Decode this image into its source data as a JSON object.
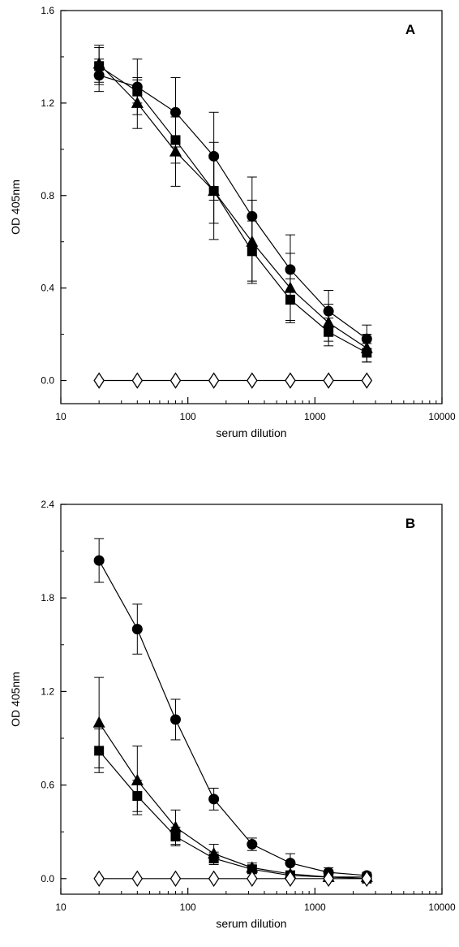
{
  "chart_data": [
    {
      "type": "line",
      "panel_label": "A",
      "xlabel": "serum dilution",
      "ylabel": "OD 405nm",
      "x_scale": "log",
      "xlim": [
        10,
        10000
      ],
      "ylim": [
        -0.1,
        1.6
      ],
      "x_ticks": [
        "10",
        "100",
        "1000",
        "10000"
      ],
      "y_ticks": [
        "0.0",
        "0.4",
        "0.8",
        "1.2",
        "1.6"
      ],
      "x": [
        20,
        40,
        80,
        160,
        320,
        640,
        1280,
        2560
      ],
      "series": [
        {
          "marker": "circle-filled",
          "values": [
            1.32,
            1.27,
            1.16,
            0.97,
            0.71,
            0.48,
            0.3,
            0.18
          ],
          "errors": [
            0.07,
            0.12,
            0.15,
            0.19,
            0.17,
            0.15,
            0.09,
            0.06
          ]
        },
        {
          "marker": "square-filled",
          "values": [
            1.36,
            1.25,
            1.04,
            0.82,
            0.56,
            0.35,
            0.21,
            0.12
          ],
          "errors": [
            0.08,
            0.05,
            0.1,
            0.14,
            0.13,
            0.09,
            0.06,
            0.04
          ]
        },
        {
          "marker": "triangle-filled",
          "values": [
            1.37,
            1.2,
            0.99,
            0.82,
            0.6,
            0.4,
            0.25,
            0.14
          ],
          "errors": [
            0.08,
            0.11,
            0.15,
            0.21,
            0.18,
            0.15,
            0.08,
            0.06
          ]
        },
        {
          "marker": "diamond-open",
          "values": [
            0.0,
            0.0,
            0.0,
            0.0,
            0.0,
            0.0,
            0.0,
            0.0
          ],
          "errors": [
            0,
            0,
            0,
            0,
            0,
            0,
            0,
            0
          ]
        }
      ]
    },
    {
      "type": "line",
      "panel_label": "B",
      "xlabel": "serum dilution",
      "ylabel": "OD 405nm",
      "x_scale": "log",
      "xlim": [
        10,
        10000
      ],
      "ylim": [
        -0.1,
        2.4
      ],
      "x_ticks": [
        "10",
        "100",
        "1000",
        "10000"
      ],
      "y_ticks": [
        "0.0",
        "0.6",
        "1.2",
        "1.8",
        "2.4"
      ],
      "x": [
        20,
        40,
        80,
        160,
        320,
        640,
        1280,
        2560
      ],
      "series": [
        {
          "marker": "circle-filled",
          "values": [
            2.04,
            1.6,
            1.02,
            0.51,
            0.22,
            0.1,
            0.04,
            0.02
          ],
          "errors": [
            0.14,
            0.16,
            0.13,
            0.07,
            0.04,
            0.06,
            0.03,
            0.02
          ]
        },
        {
          "marker": "triangle-filled",
          "values": [
            1.0,
            0.63,
            0.33,
            0.16,
            0.07,
            0.03,
            0.01,
            0.01
          ],
          "errors": [
            0.29,
            0.22,
            0.11,
            0.06,
            0.03,
            0.02,
            0.02,
            0.01
          ]
        },
        {
          "marker": "square-filled",
          "values": [
            0.82,
            0.53,
            0.27,
            0.13,
            0.06,
            0.02,
            0.01,
            0.0
          ],
          "errors": [
            0.14,
            0.1,
            0.06,
            0.04,
            0.02,
            0.02,
            0.01,
            0.01
          ]
        },
        {
          "marker": "diamond-open",
          "values": [
            0.0,
            0.0,
            0.0,
            0.0,
            0.0,
            0.0,
            0.0,
            0.0
          ],
          "errors": [
            0,
            0,
            0,
            0,
            0,
            0,
            0,
            0
          ]
        }
      ]
    }
  ]
}
